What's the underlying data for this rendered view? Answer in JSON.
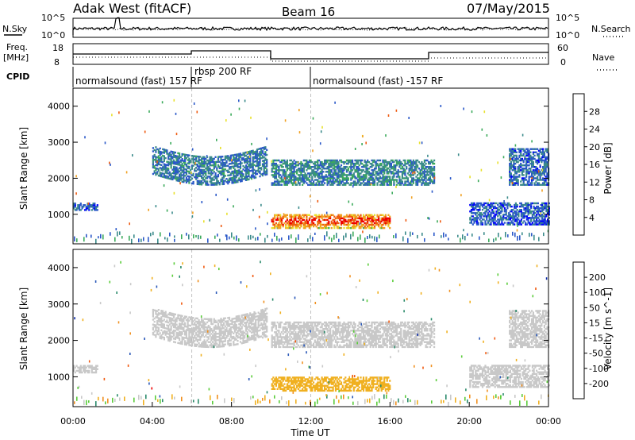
{
  "header": {
    "station": "Adak West (fitACF)",
    "beam": "Beam 16",
    "date": "07/May/2015"
  },
  "top_panels": {
    "nsky_label": "N.Sky",
    "nsky_tick_hi": "10^5",
    "nsky_tick_lo": "10^0",
    "nsearch_label": "N.Search",
    "nsearch_tick_hi": "10^5",
    "nsearch_tick_lo": "10^0",
    "freq_label_1": "Freq.",
    "freq_label_2": "[MHz]",
    "freq_tick_hi": "18",
    "freq_tick_lo": "8",
    "nave_label": "Nave",
    "nave_tick_hi": "60",
    "nave_tick_lo": "0",
    "cpid_label": "CPID",
    "cpid_segments": [
      {
        "label": "normalsound (fast) 157 RF",
        "start_ut": 0,
        "end_ut": 6
      },
      {
        "label": "rbsp 200 RF",
        "start_ut": 6,
        "end_ut": 12
      },
      {
        "label": "normalsound (fast) -157 RF",
        "start_ut": 12,
        "end_ut": 24
      }
    ]
  },
  "chart_data": [
    {
      "type": "heatmap",
      "title": "Power",
      "xlabel": "",
      "ylabel": "Slant Range [km]",
      "xlim": [
        0,
        24
      ],
      "ylim": [
        180,
        4500
      ],
      "yticks": [
        1000,
        2000,
        3000,
        4000
      ],
      "colorbar_label": "Power [dB]",
      "colorbar_ticks": [
        "28",
        "24",
        "20",
        "16",
        "12",
        "8",
        "4"
      ],
      "colorbar_colors": [
        "#0000ff",
        "#2a58c8",
        "#3a8a8a",
        "#3aaa5a",
        "#e8e02a",
        "#f0a020",
        "#ee5a10",
        "#ee0000"
      ],
      "echo_regions": [
        {
          "start_ut": 0.0,
          "end_ut": 1.2,
          "range_km": [
            1100,
            1300
          ],
          "power_db": 6
        },
        {
          "start_ut": 4.0,
          "end_ut": 9.8,
          "range_km": [
            1900,
            2700
          ],
          "power_db": 8
        },
        {
          "start_ut": 10.0,
          "end_ut": 18.2,
          "range_km": [
            1800,
            2500
          ],
          "power_db": 9
        },
        {
          "start_ut": 10.0,
          "end_ut": 16.0,
          "range_km": [
            600,
            1000
          ],
          "power_db": 22
        },
        {
          "start_ut": 22.0,
          "end_ut": 24.0,
          "range_km": [
            1800,
            2800
          ],
          "power_db": 7
        },
        {
          "start_ut": 20.0,
          "end_ut": 24.0,
          "range_km": [
            700,
            1300
          ],
          "power_db": 6
        }
      ]
    },
    {
      "type": "heatmap",
      "title": "Velocity",
      "xlabel": "Time UT",
      "ylabel": "Slant Range [km]",
      "xlim": [
        0,
        24
      ],
      "ylim": [
        180,
        4500
      ],
      "yticks": [
        1000,
        2000,
        3000,
        4000
      ],
      "xticks": [
        "00:00",
        "04:00",
        "08:00",
        "12:00",
        "16:00",
        "20:00",
        "00:00"
      ],
      "colorbar_label": "Velocity [m s^-1]",
      "colorbar_ticks": [
        "200",
        "100",
        "50",
        "15",
        "-15",
        "-50",
        "-100",
        "-200"
      ],
      "colorbar_colors": [
        "#ee0000",
        "#f05a10",
        "#f09020",
        "#f0b020",
        "#c8c8c8",
        "#5acc3a",
        "#2a8a6a",
        "#2a58b8",
        "#0a2aaa"
      ],
      "echo_regions": [
        {
          "start_ut": 0.0,
          "end_ut": 1.2,
          "range_km": [
            1100,
            1300
          ],
          "velocity_ms": 0
        },
        {
          "start_ut": 4.0,
          "end_ut": 9.8,
          "range_km": [
            1900,
            2700
          ],
          "velocity_ms": 0
        },
        {
          "start_ut": 10.0,
          "end_ut": 18.2,
          "range_km": [
            1800,
            2500
          ],
          "velocity_ms": 0
        },
        {
          "start_ut": 10.0,
          "end_ut": 16.0,
          "range_km": [
            600,
            1000
          ],
          "velocity_ms": -50
        },
        {
          "start_ut": 22.0,
          "end_ut": 24.0,
          "range_km": [
            1800,
            2800
          ],
          "velocity_ms": 0
        },
        {
          "start_ut": 20.0,
          "end_ut": 24.0,
          "range_km": [
            700,
            1300
          ],
          "velocity_ms": 0
        }
      ]
    }
  ]
}
